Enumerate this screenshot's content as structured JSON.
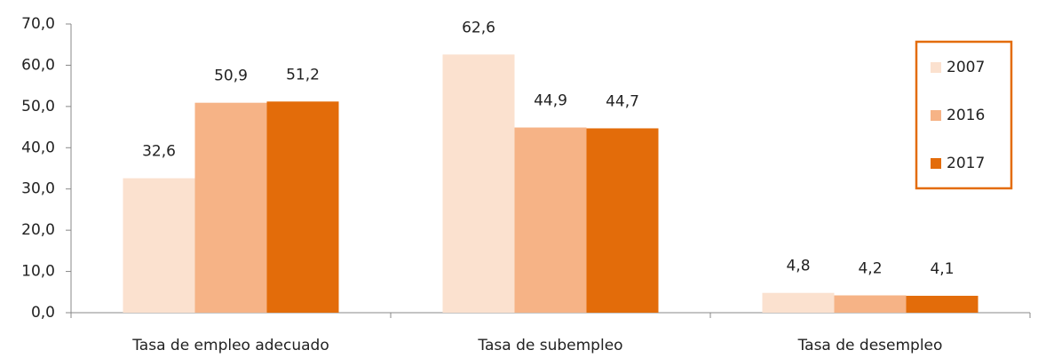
{
  "chart_data": {
    "type": "bar",
    "categories": [
      "Tasa de empleo adecuado",
      "Tasa de subempleo",
      "Tasa de desempleo"
    ],
    "series": [
      {
        "name": "2007",
        "color": "#fbe1cf",
        "values": [
          32.6,
          62.6,
          4.8
        ],
        "value_labels": [
          "32,6",
          "62,6",
          "4,8"
        ]
      },
      {
        "name": "2016",
        "color": "#f6b386",
        "values": [
          50.9,
          44.9,
          4.2
        ],
        "value_labels": [
          "50,9",
          "44,9",
          "4,2"
        ]
      },
      {
        "name": "2017",
        "color": "#e36c0a",
        "values": [
          51.2,
          44.7,
          4.1
        ],
        "value_labels": [
          "51,2",
          "44,7",
          "4,1"
        ]
      }
    ],
    "ylim": [
      0,
      70
    ],
    "yticks": [
      {
        "value": 0,
        "label": "0,0"
      },
      {
        "value": 10,
        "label": "10,0"
      },
      {
        "value": 20,
        "label": "20,0"
      },
      {
        "value": 30,
        "label": "30,0"
      },
      {
        "value": 40,
        "label": "40,0"
      },
      {
        "value": 50,
        "label": "50,0"
      },
      {
        "value": 60,
        "label": "60,0"
      },
      {
        "value": 70,
        "label": "70,0"
      }
    ],
    "legend": "right",
    "grid": false
  }
}
